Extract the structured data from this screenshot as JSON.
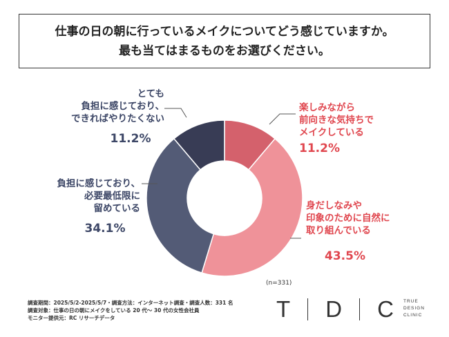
{
  "question": {
    "line1": "仕事の日の朝に行っているメイクについてどう感じていますか。",
    "line2": "最も当てはまるものをお選びください。"
  },
  "chart_data": {
    "type": "pie",
    "sample_size": "(n=331)",
    "slices": [
      {
        "label_lines": [
          "楽しみながら",
          "前向きな気持ちで",
          "メイクしている"
        ],
        "value": 11.2,
        "display": "11.2%",
        "color": "#d4616c",
        "text_color": "#e0474f"
      },
      {
        "label_lines": [
          "身だしなみや",
          "印象のために自然に",
          "取り組んでいる"
        ],
        "value": 43.5,
        "display": "43.5%",
        "color": "#ef9299",
        "text_color": "#e0474f"
      },
      {
        "label_lines": [
          "負担に感じており、",
          "必要最低限に",
          "留めている"
        ],
        "value": 34.1,
        "display": "34.1%",
        "color": "#535b76",
        "text_color": "#3c4666"
      },
      {
        "label_lines": [
          "とても",
          "負担に感じており、",
          "できればやりたくない"
        ],
        "value": 11.2,
        "display": "11.2%",
        "color": "#383c55",
        "text_color": "#3c4666"
      }
    ]
  },
  "footer": {
    "line1": "調査期間：2025/5/2-2025/5/7・調査方法：インターネット調査・調査人数：331 名",
    "line2": "調査対象：仕事の日の朝にメイクをしている 20 代～ 30 代の女性会社員",
    "line3": "モニター提供元：RC リサーチデータ"
  },
  "logo": {
    "letters": [
      "T",
      "D",
      "C"
    ],
    "sub_lines": [
      "TRUE",
      "DESIGN",
      "CLINIC"
    ]
  }
}
